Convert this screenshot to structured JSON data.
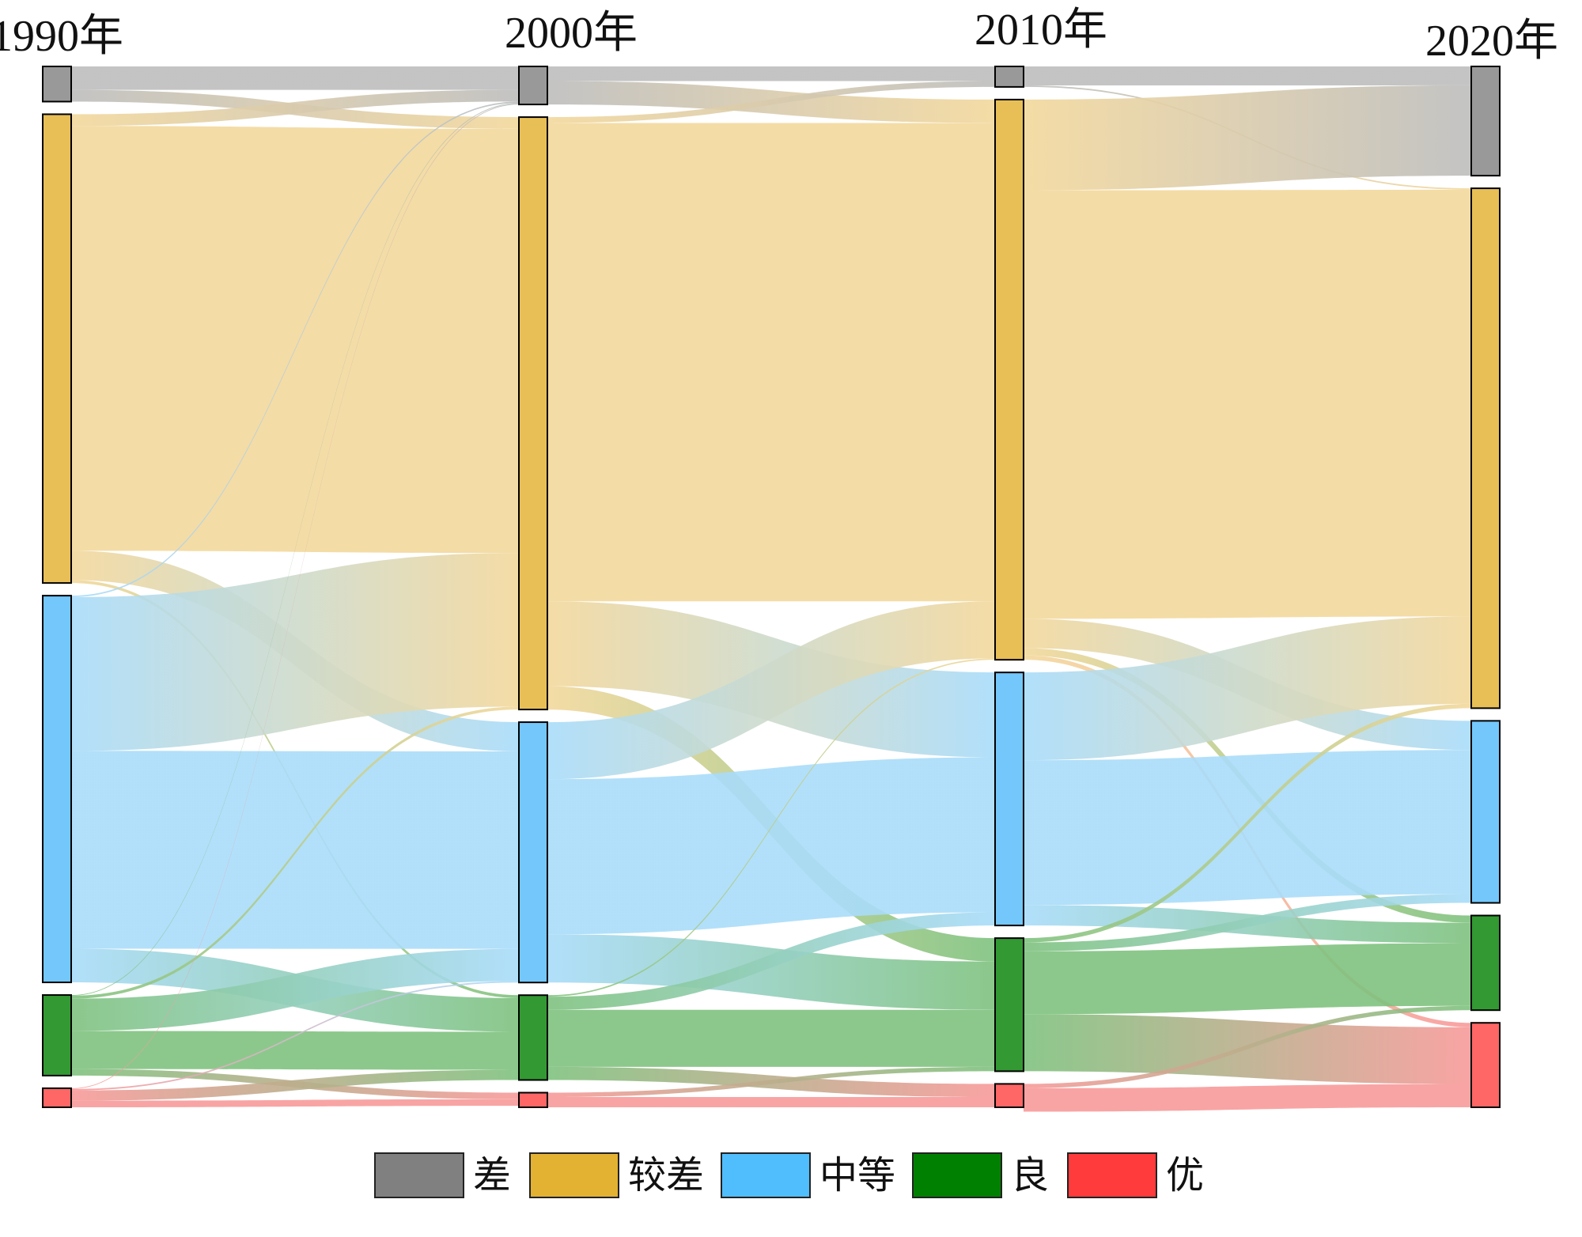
{
  "chart_data": {
    "type": "sankey",
    "title": "",
    "years": [
      "1990年",
      "2000年",
      "2010年",
      "2020年"
    ],
    "classes": [
      "差",
      "较差",
      "中等",
      "良",
      "优"
    ],
    "class_colors": [
      "#999999",
      "#e8bf56",
      "#74c7fb",
      "#339933",
      "#ff6666"
    ],
    "link_colors": [
      "#bdbdbd",
      "#f3d89c",
      "#a9dcfa",
      "#7fc27f",
      "#f89a9a"
    ],
    "node_values": [
      [
        2.4,
        32.0,
        26.4,
        5.5,
        1.3
      ],
      [
        2.6,
        40.5,
        17.8,
        5.8,
        1.0
      ],
      [
        1.4,
        38.3,
        17.3,
        9.1,
        1.6
      ],
      [
        7.5,
        35.7,
        12.5,
        6.5,
        5.8
      ]
    ],
    "flows": [
      [
        [
          1.6,
          0.8,
          0.0,
          0.0,
          0.0
        ],
        [
          0.8,
          29.0,
          2.0,
          0.2,
          0.0
        ],
        [
          0.1,
          10.5,
          13.5,
          2.3,
          0.0
        ],
        [
          0.05,
          0.2,
          2.2,
          2.6,
          0.45
        ],
        [
          0.05,
          0.0,
          0.1,
          0.7,
          0.45
        ]
      ],
      [
        [
          1.0,
          1.6,
          0.0,
          0.0,
          0.0
        ],
        [
          0.4,
          32.7,
          5.8,
          1.6,
          0.0
        ],
        [
          0.0,
          3.9,
          10.6,
          3.3,
          0.0
        ],
        [
          0.0,
          0.1,
          0.9,
          3.9,
          0.9
        ],
        [
          0.0,
          0.0,
          0.0,
          0.3,
          0.7
        ]
      ],
      [
        [
          1.3,
          0.1,
          0.0,
          0.0,
          0.0
        ],
        [
          6.2,
          29.3,
          2.0,
          0.5,
          0.3
        ],
        [
          0.0,
          6.0,
          9.9,
          1.4,
          0.0
        ],
        [
          0.0,
          0.3,
          0.6,
          4.3,
          3.9
        ],
        [
          0.0,
          0.0,
          0.0,
          0.3,
          1.6
        ]
      ]
    ],
    "legend": {
      "position": "bottom-center",
      "entries": [
        "差",
        "较差",
        "中等",
        "良",
        "优"
      ],
      "colors": [
        "#808080",
        "#e3b233",
        "#50bdfc",
        "#008000",
        "#ff3b3b"
      ]
    }
  }
}
